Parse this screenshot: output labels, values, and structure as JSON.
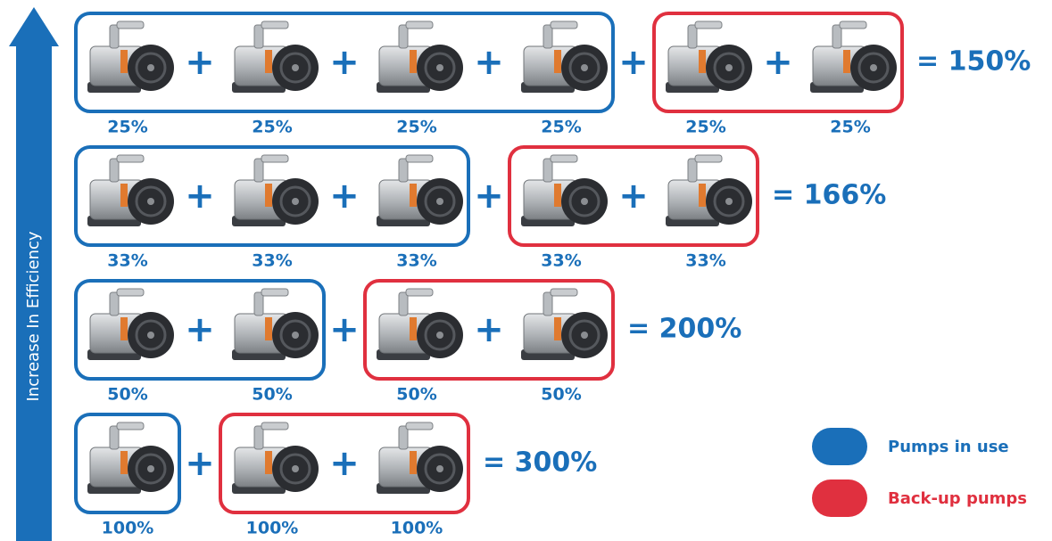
{
  "axis_label": "Increase In Efficiency",
  "rows": [
    {
      "in_use": [
        "25%",
        "25%",
        "25%",
        "25%"
      ],
      "backup": [
        "25%",
        "25%"
      ],
      "total": "= 150%"
    },
    {
      "in_use": [
        "33%",
        "33%",
        "33%"
      ],
      "backup": [
        "33%",
        "33%"
      ],
      "total": "= 166%"
    },
    {
      "in_use": [
        "50%",
        "50%"
      ],
      "backup": [
        "50%",
        "50%"
      ],
      "total": "= 200%"
    },
    {
      "in_use": [
        "100%"
      ],
      "backup": [
        "100%",
        "100%"
      ],
      "total": "= 300%"
    }
  ],
  "legend": {
    "in_use": "Pumps in use",
    "backup": "Back-up pumps"
  }
}
